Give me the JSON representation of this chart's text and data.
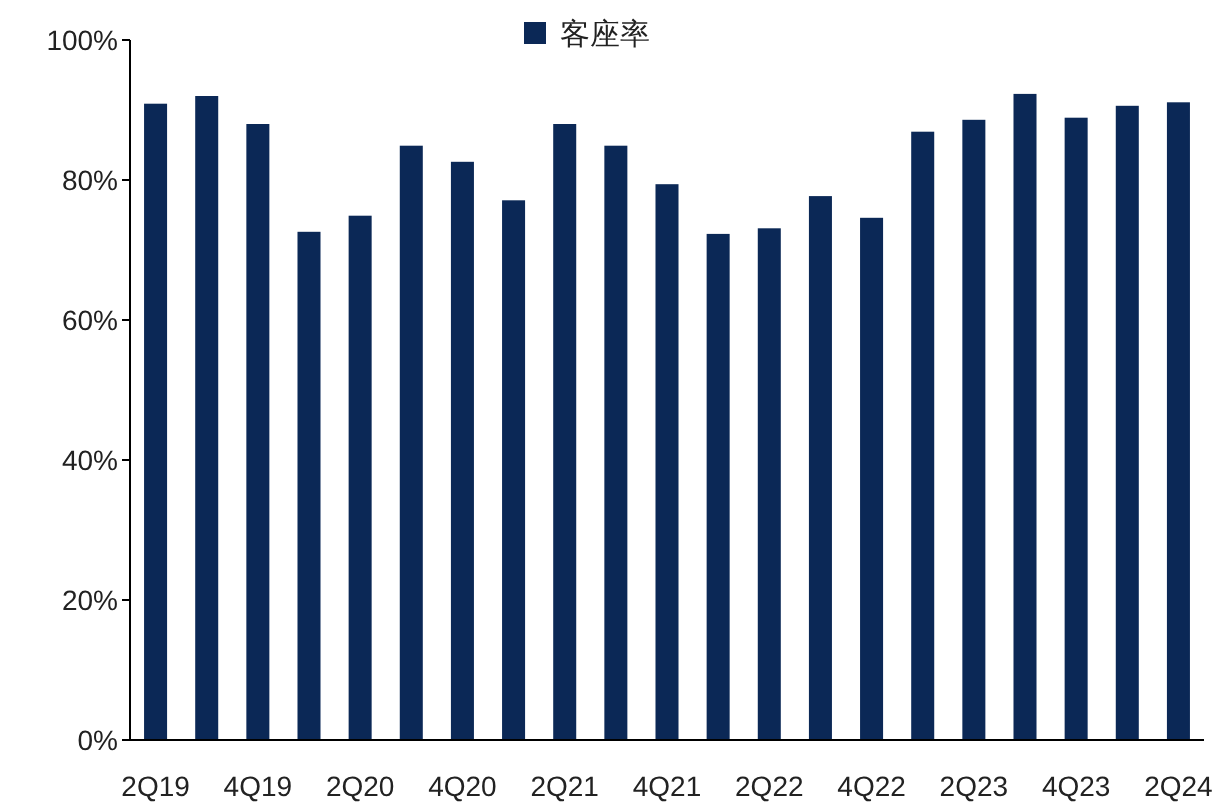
{
  "chart_data": {
    "type": "bar",
    "categories": [
      "2Q19",
      null,
      "4Q19",
      null,
      "2Q20",
      null,
      "4Q20",
      null,
      "2Q21",
      null,
      "4Q21",
      null,
      "2Q22",
      null,
      "4Q22",
      null,
      "2Q23",
      null,
      "4Q23",
      null,
      "2Q24"
    ],
    "series": [
      {
        "name": "客座率",
        "color": "#0b2856",
        "values": [
          90.9,
          92,
          88,
          72.6,
          74.9,
          84.9,
          82.6,
          77.1,
          88,
          84.9,
          79.4,
          72.3,
          73.1,
          77.7,
          74.6,
          86.9,
          88.6,
          92.3,
          88.9,
          90.6,
          91.1
        ]
      }
    ],
    "ylim": [
      0,
      100
    ],
    "yticks": [
      {
        "value": 0,
        "label": "0%"
      },
      {
        "value": 20,
        "label": "20%"
      },
      {
        "value": 40,
        "label": "40%"
      },
      {
        "value": 60,
        "label": "60%"
      },
      {
        "value": 80,
        "label": "80%"
      },
      {
        "value": 100,
        "label": "100%"
      }
    ],
    "grid": false,
    "legend": "top"
  }
}
